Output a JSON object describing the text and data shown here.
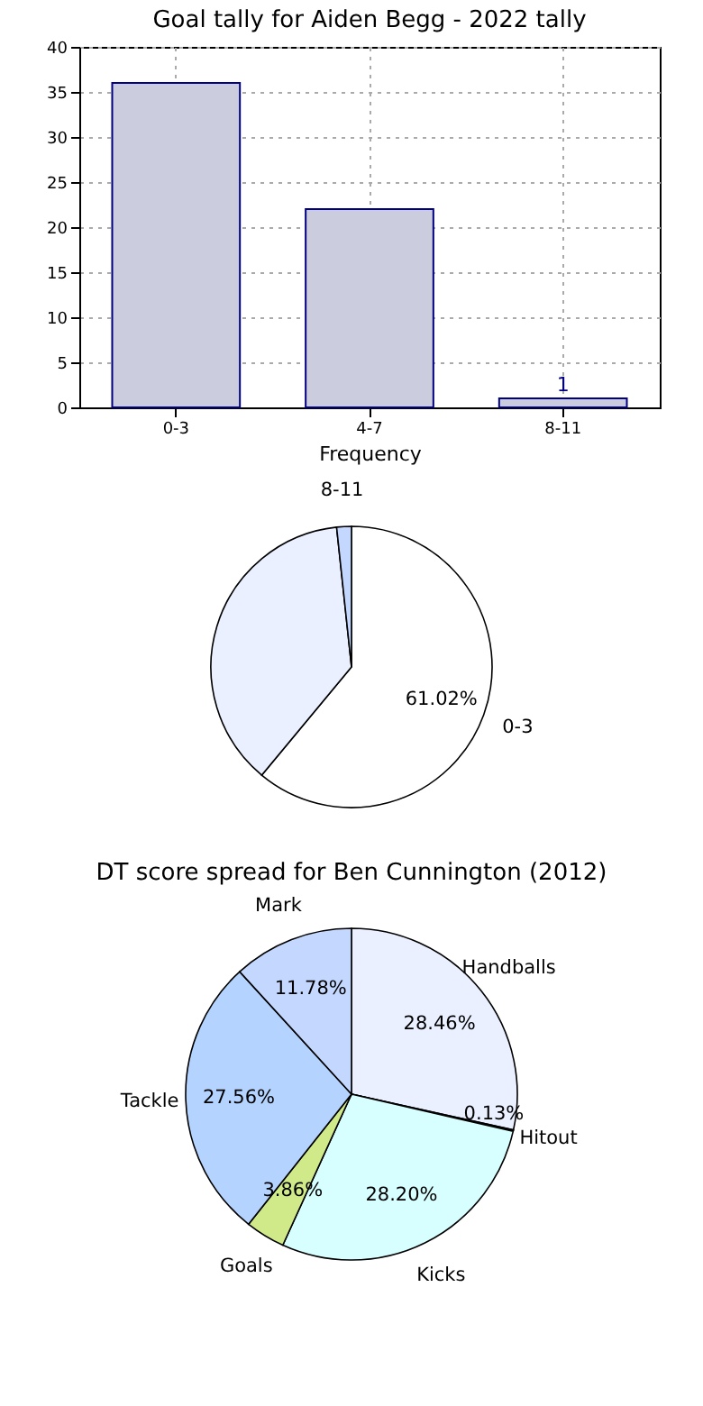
{
  "chart_data": [
    {
      "type": "bar",
      "title": "Goal tally for Aiden Begg - 2022 tally",
      "xlabel": "Frequency",
      "categories": [
        "0-3",
        "4-7",
        "8-11"
      ],
      "values": [
        36,
        22,
        1
      ],
      "color": "#ccccdf",
      "value_labels": [
        null,
        null,
        "1"
      ],
      "ylim": [
        0,
        40
      ],
      "yticks": [
        0,
        5,
        10,
        15,
        20,
        25,
        30,
        35,
        40
      ],
      "grid": true,
      "legend": false
    },
    {
      "type": "pie",
      "categories": [
        "0-3",
        null,
        "8-11"
      ],
      "values": [
        61.02,
        37.29,
        1.69
      ],
      "colors": [
        "#ffffff",
        "#eaf0ff",
        "#c4d8ff"
      ],
      "value_labels": [
        "61.02%",
        null,
        null
      ],
      "legend": false
    },
    {
      "type": "pie",
      "title": "DT score spread for Ben Cunnington (2012)",
      "categories": [
        "Handballs",
        "Hitout",
        "Kicks",
        "Goals",
        "Tackle",
        "Mark"
      ],
      "values": [
        28.46,
        0.13,
        28.2,
        3.86,
        27.56,
        11.78
      ],
      "colors": [
        "#eaf0ff",
        "#f4f4f4",
        "#d8ffff",
        "#d0ea8a",
        "#b4d4ff",
        "#c4d8ff"
      ],
      "value_labels": [
        "28.46%",
        "0.13%",
        "28.20%",
        "3.86%",
        "27.56%",
        "11.78%"
      ],
      "legend": false
    }
  ]
}
